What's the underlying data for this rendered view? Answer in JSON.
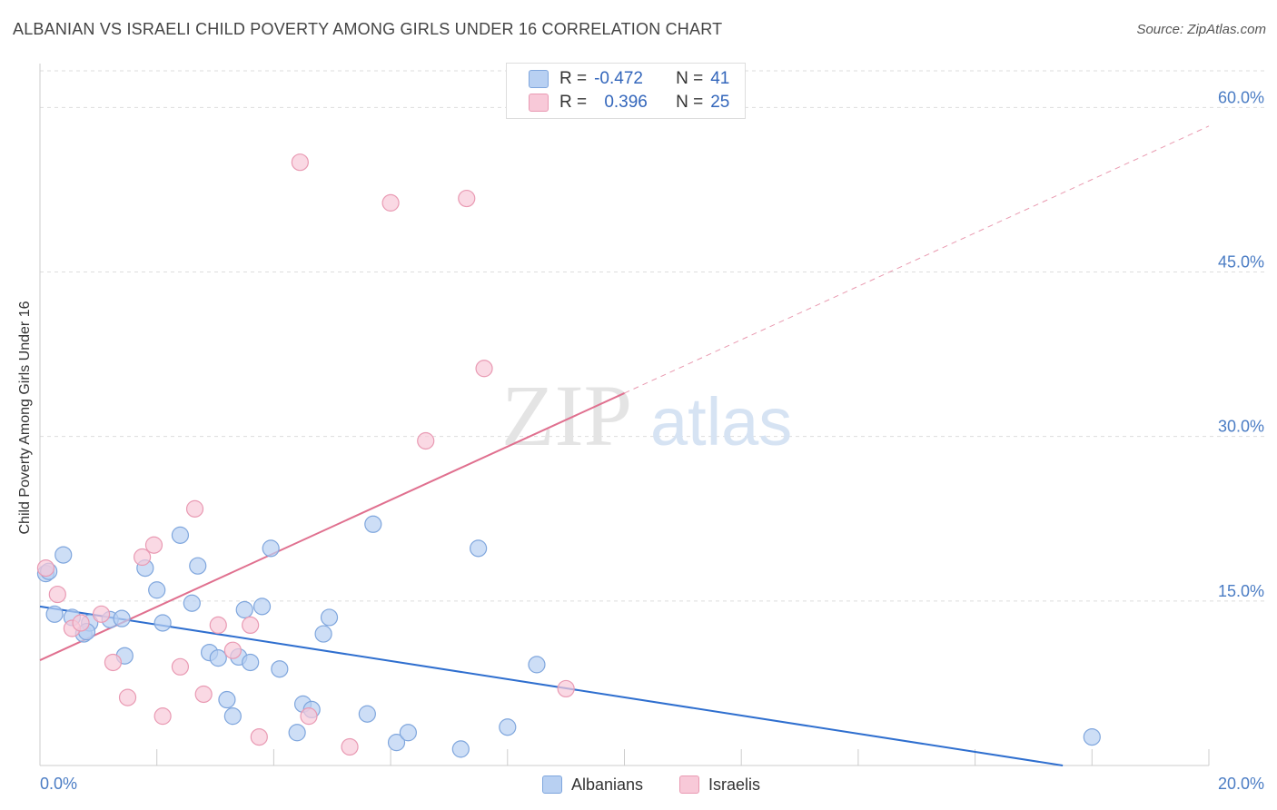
{
  "title": "ALBANIAN VS ISRAELI CHILD POVERTY AMONG GIRLS UNDER 16 CORRELATION CHART",
  "source": "Source: ZipAtlas.com",
  "watermark": {
    "zip": "ZIP",
    "atlas": "atlas"
  },
  "legend_stats": {
    "albanians": {
      "r_label": "R =",
      "r_value": "-0.472",
      "n_label": "N =",
      "n_value": "41"
    },
    "israelis": {
      "r_label": "R =",
      "r_value": "0.396",
      "n_label": "N =",
      "n_value": "25"
    }
  },
  "colors": {
    "albanians_fill": "#b8d0f2",
    "albanians_stroke": "#7fa6dd",
    "albanians_line": "#2f6fcf",
    "israelis_fill": "#f8c9d8",
    "israelis_stroke": "#e99ab3",
    "israelis_line": "#e0708f",
    "tick_text": "#4a7cc4",
    "grid": "#dddddd"
  },
  "chart_data": {
    "type": "scatter",
    "title": "ALBANIAN VS ISRAELI CHILD POVERTY AMONG GIRLS UNDER 16 CORRELATION CHART",
    "xlabel": "",
    "ylabel": "Child Poverty Among Girls Under 16",
    "xlim": [
      0,
      20
    ],
    "ylim": [
      0,
      64
    ],
    "x_tick_labels": [
      "0.0%",
      "20.0%"
    ],
    "y_ticks": [
      15,
      30,
      45,
      60
    ],
    "y_tick_labels": [
      "15.0%",
      "30.0%",
      "45.0%",
      "60.0%"
    ],
    "grid": true,
    "legend_position": "bottom-center",
    "series": [
      {
        "name": "Albanians",
        "points": [
          [
            0.1,
            17.5
          ],
          [
            0.4,
            19.2
          ],
          [
            0.25,
            13.8
          ],
          [
            0.55,
            13.5
          ],
          [
            0.75,
            12.0
          ],
          [
            0.85,
            13.0
          ],
          [
            0.8,
            12.2
          ],
          [
            1.2,
            13.3
          ],
          [
            1.4,
            13.4
          ],
          [
            1.8,
            18.0
          ],
          [
            2.0,
            16.0
          ],
          [
            2.1,
            13.0
          ],
          [
            2.4,
            21.0
          ],
          [
            2.6,
            14.8
          ],
          [
            1.45,
            10.0
          ],
          [
            2.7,
            18.2
          ],
          [
            2.9,
            10.3
          ],
          [
            3.05,
            9.8
          ],
          [
            3.4,
            9.9
          ],
          [
            3.2,
            6.0
          ],
          [
            3.3,
            4.5
          ],
          [
            3.5,
            14.2
          ],
          [
            3.6,
            9.4
          ],
          [
            3.8,
            14.5
          ],
          [
            3.95,
            19.8
          ],
          [
            4.1,
            8.8
          ],
          [
            4.4,
            3.0
          ],
          [
            4.5,
            5.6
          ],
          [
            4.65,
            5.1
          ],
          [
            4.85,
            12.0
          ],
          [
            4.95,
            13.5
          ],
          [
            5.6,
            4.7
          ],
          [
            5.7,
            22.0
          ],
          [
            6.1,
            2.1
          ],
          [
            6.3,
            3.0
          ],
          [
            7.2,
            1.5
          ],
          [
            7.5,
            19.8
          ],
          [
            8.0,
            3.5
          ],
          [
            8.5,
            9.2
          ],
          [
            18.0,
            2.6
          ],
          [
            0.15,
            17.7
          ]
        ]
      },
      {
        "name": "Israelis",
        "points": [
          [
            0.1,
            18.0
          ],
          [
            0.3,
            15.6
          ],
          [
            0.55,
            12.5
          ],
          [
            0.7,
            13.0
          ],
          [
            1.05,
            13.8
          ],
          [
            1.25,
            9.4
          ],
          [
            1.5,
            6.2
          ],
          [
            1.75,
            19.0
          ],
          [
            1.95,
            20.1
          ],
          [
            2.1,
            4.5
          ],
          [
            2.4,
            9.0
          ],
          [
            2.65,
            23.4
          ],
          [
            2.8,
            6.5
          ],
          [
            3.05,
            12.8
          ],
          [
            3.3,
            10.5
          ],
          [
            3.6,
            12.8
          ],
          [
            3.75,
            2.6
          ],
          [
            4.45,
            55.0
          ],
          [
            4.6,
            4.5
          ],
          [
            5.3,
            1.7
          ],
          [
            6.0,
            51.3
          ],
          [
            6.6,
            29.6
          ],
          [
            7.3,
            51.7
          ],
          [
            7.6,
            36.2
          ],
          [
            9.0,
            7.0
          ]
        ]
      }
    ],
    "trendlines": [
      {
        "series": "Albanians",
        "x0": 0,
        "y0": 14.5,
        "x1": 17.5,
        "y1": 0
      },
      {
        "series": "Israelis",
        "x0": 0,
        "y0": 9.6,
        "x1": 20,
        "y1": 58.3,
        "solid_until_x": 10
      }
    ]
  }
}
